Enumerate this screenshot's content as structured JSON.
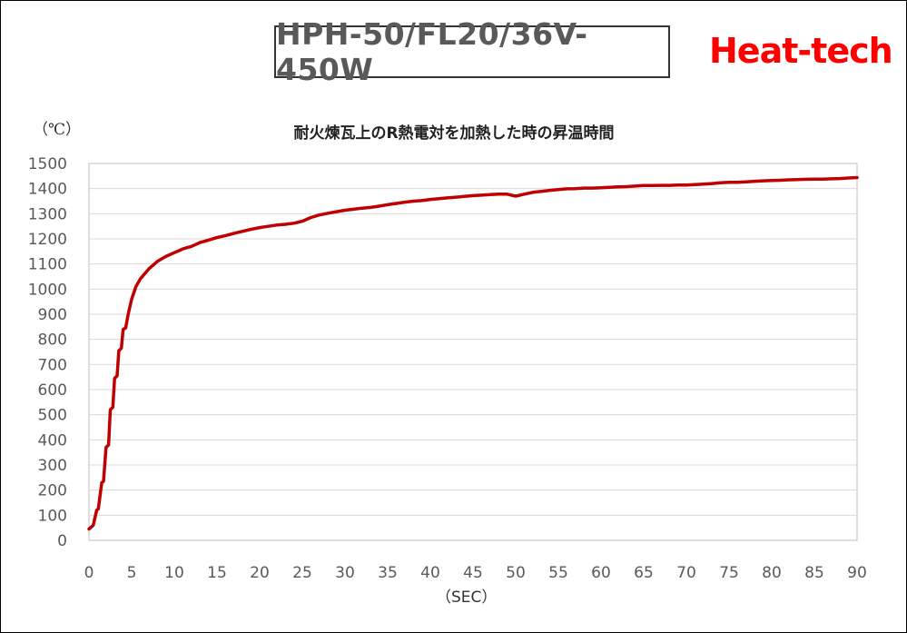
{
  "header": {
    "model": "HPH-50/FL20/36V-450W",
    "brand": "Heat-tech"
  },
  "colors": {
    "series": "#c00000",
    "brand": "#ff0000",
    "grid": "#d9d9d9",
    "text": "#595959"
  },
  "chart_data": {
    "type": "line",
    "title": "耐火煉瓦上のR熱電対を加熱した時の昇温時間",
    "ylabel": "（℃）",
    "xlabel": "（SEC）",
    "xlim": [
      0,
      90
    ],
    "ylim": [
      0,
      1500
    ],
    "xticks": [
      0,
      5,
      10,
      15,
      20,
      25,
      30,
      35,
      40,
      45,
      50,
      55,
      60,
      65,
      70,
      75,
      80,
      85,
      90
    ],
    "yticks": [
      0,
      100,
      200,
      300,
      400,
      500,
      600,
      700,
      800,
      900,
      1000,
      1100,
      1200,
      1300,
      1400,
      1500
    ],
    "grid": true,
    "series": [
      {
        "x": [
          0,
          0.5,
          0.9,
          1.1,
          1.5,
          1.7,
          2.0,
          2.3,
          2.5,
          2.8,
          3.0,
          3.3,
          3.5,
          3.8,
          4.0,
          4.3,
          4.6,
          5.0,
          5.5,
          6.0,
          6.5,
          7.0,
          7.5,
          8.0,
          8.5,
          9.0,
          10,
          11,
          12,
          13,
          14,
          15,
          16,
          17,
          18,
          19,
          20,
          21,
          22,
          23,
          24,
          25,
          26,
          27,
          28,
          29,
          30,
          31,
          32,
          33,
          34,
          35,
          36,
          37,
          38,
          39,
          40,
          41,
          42,
          43,
          44,
          45,
          46,
          47,
          48,
          49,
          50,
          51,
          52,
          53,
          54,
          55,
          56,
          57,
          58,
          59,
          60,
          61,
          62,
          63,
          64,
          65,
          66,
          67,
          68,
          69,
          70,
          71,
          72,
          73,
          74,
          75,
          76,
          77,
          78,
          79,
          80,
          81,
          82,
          83,
          84,
          85,
          86,
          87,
          88,
          89,
          90
        ],
        "y": [
          45,
          60,
          120,
          125,
          230,
          235,
          370,
          380,
          520,
          530,
          645,
          655,
          755,
          765,
          840,
          845,
          900,
          960,
          1010,
          1040,
          1060,
          1080,
          1095,
          1110,
          1120,
          1130,
          1145,
          1160,
          1170,
          1185,
          1195,
          1205,
          1213,
          1222,
          1230,
          1238,
          1245,
          1250,
          1255,
          1258,
          1262,
          1270,
          1285,
          1295,
          1302,
          1308,
          1314,
          1318,
          1322,
          1325,
          1330,
          1336,
          1341,
          1346,
          1350,
          1352,
          1357,
          1360,
          1363,
          1366,
          1369,
          1372,
          1374,
          1376,
          1378,
          1378,
          1370,
          1378,
          1385,
          1389,
          1393,
          1396,
          1399,
          1400,
          1402,
          1402,
          1403,
          1405,
          1407,
          1408,
          1410,
          1412,
          1412,
          1413,
          1413,
          1414,
          1414,
          1416,
          1418,
          1420,
          1423,
          1425,
          1425,
          1427,
          1429,
          1431,
          1432,
          1433,
          1435,
          1436,
          1437,
          1438,
          1438,
          1439,
          1440,
          1442,
          1444
        ]
      }
    ]
  }
}
